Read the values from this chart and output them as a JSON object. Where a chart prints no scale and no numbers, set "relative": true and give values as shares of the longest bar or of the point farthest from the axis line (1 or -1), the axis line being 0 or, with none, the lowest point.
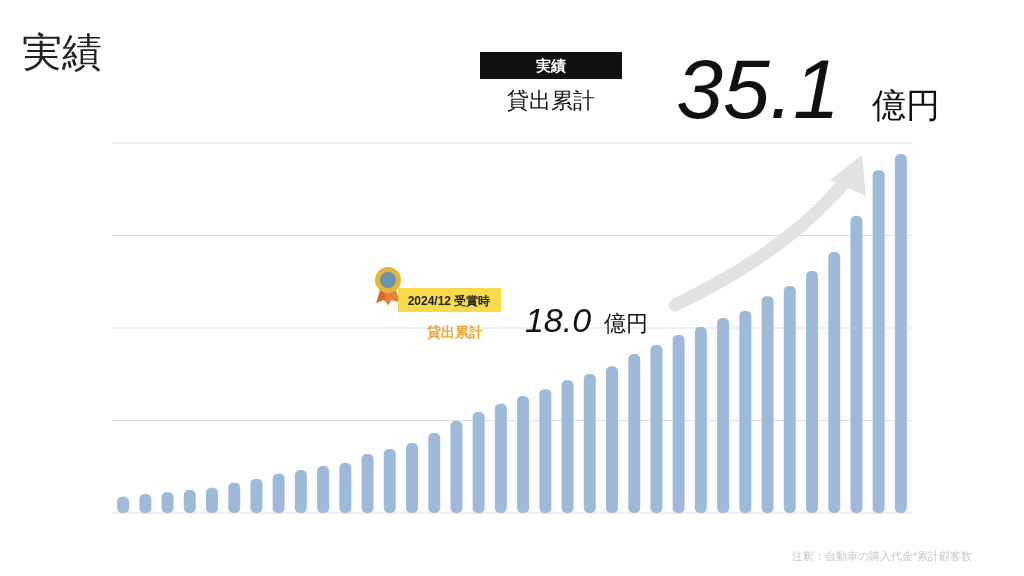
{
  "chart_data": {
    "type": "bar",
    "title": "実績",
    "categories": [
      null,
      null,
      null,
      null,
      null,
      null,
      null,
      null,
      null,
      null,
      null,
      null,
      null,
      null,
      null,
      null,
      null,
      null,
      null,
      null,
      null,
      null,
      null,
      null,
      null,
      null,
      null,
      null,
      null,
      null,
      null,
      null,
      null,
      null,
      null,
      null
    ],
    "values": [
      0.045,
      0.053,
      0.058,
      0.064,
      0.07,
      0.084,
      0.095,
      0.109,
      0.12,
      0.131,
      0.139,
      0.164,
      0.178,
      0.195,
      0.223,
      0.256,
      0.281,
      0.304,
      0.326,
      0.345,
      0.37,
      0.387,
      0.409,
      0.443,
      0.468,
      0.496,
      0.518,
      0.543,
      0.563,
      0.604,
      0.632,
      0.674,
      0.727,
      0.827,
      0.955,
      1
    ],
    "color": "#9fb9d9",
    "relative": true,
    "grid": "y",
    "annotations": [
      "実績",
      "貸出累計",
      "35.1",
      "億円",
      "2024/12 受賞時",
      "貸出累計",
      "18.0",
      "億円",
      "注釈：自動車の購入代金*累計顧客数"
    ]
  }
}
